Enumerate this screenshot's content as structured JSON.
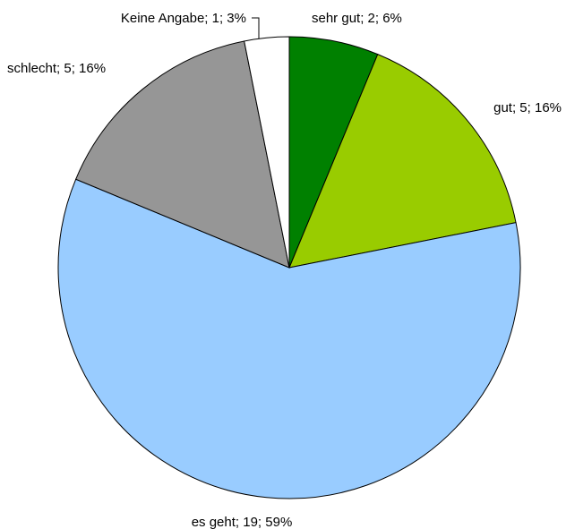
{
  "chart_data": {
    "type": "pie",
    "title": "",
    "start_angle_deg": 0,
    "direction": "clockwise",
    "slices": [
      {
        "category": "sehr gut",
        "value": 2,
        "percent": 6,
        "label": "sehr gut; 2; 6%",
        "color": "#008000"
      },
      {
        "category": "gut",
        "value": 5,
        "percent": 16,
        "label": "gut; 5; 16%",
        "color": "#99cc00"
      },
      {
        "category": "es geht",
        "value": 19,
        "percent": 59,
        "label": "es geht; 19; 59%",
        "color": "#99ccff"
      },
      {
        "category": "schlecht",
        "value": 5,
        "percent": 16,
        "label": "schlecht; 5; 16%",
        "color": "#969696"
      },
      {
        "category": "Keine Angabe",
        "value": 1,
        "percent": 3,
        "label": "Keine Angabe; 1; 3%",
        "color": "#ffffff"
      }
    ]
  }
}
